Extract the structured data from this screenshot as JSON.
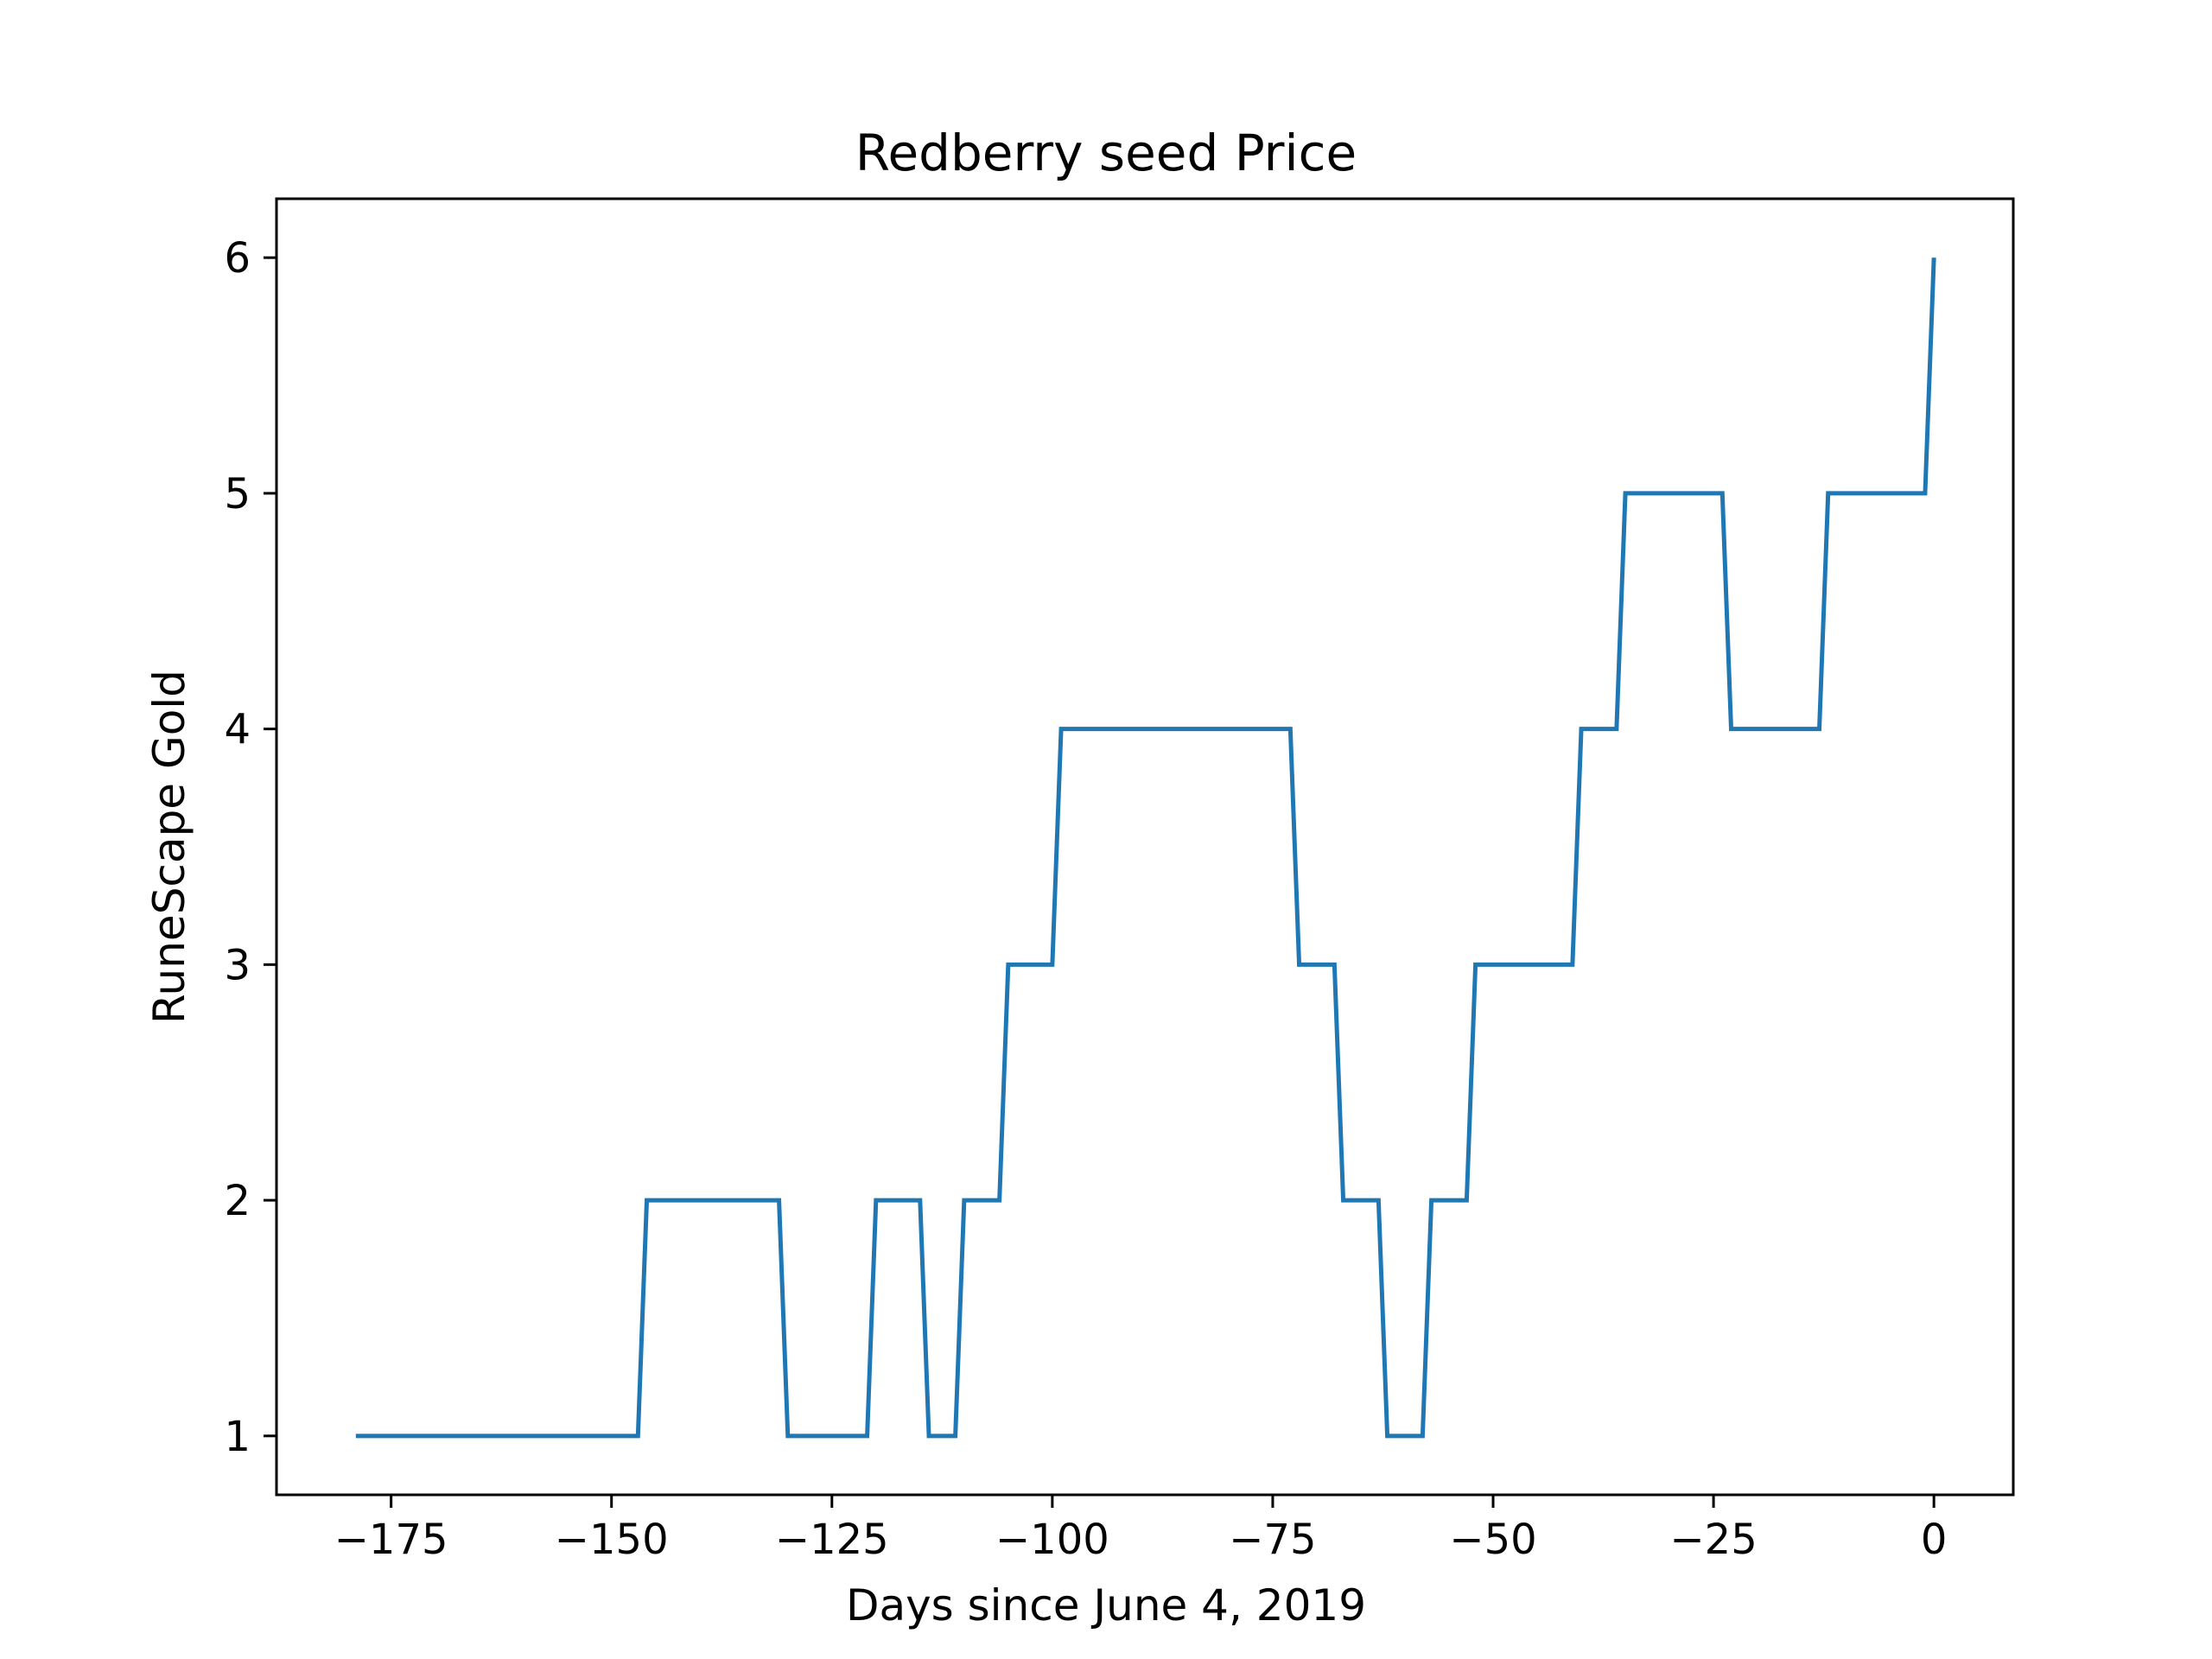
{
  "chart_data": {
    "type": "line",
    "title": "Redberry seed Price",
    "xlabel": "Days since June 4, 2019",
    "ylabel": "RuneScape Gold",
    "xlim": [
      -188,
      9
    ],
    "ylim": [
      0.75,
      6.25
    ],
    "xticks": [
      -175,
      -150,
      -125,
      -100,
      -75,
      -50,
      -25,
      0
    ],
    "xtick_labels": [
      "−175",
      "−150",
      "−125",
      "−100",
      "−75",
      "−50",
      "−25",
      "0"
    ],
    "yticks": [
      1,
      2,
      3,
      4,
      5,
      6
    ],
    "ytick_labels": [
      "1",
      "2",
      "3",
      "4",
      "5",
      "6"
    ],
    "grid": false,
    "series": [
      {
        "color": "#1f77b4",
        "x": [
          -179,
          -147,
          -146,
          -131,
          -130,
          -121,
          -120,
          -115,
          -114,
          -111,
          -110,
          -106,
          -105,
          -100,
          -99,
          -73,
          -72,
          -68,
          -67,
          -63,
          -62,
          -58,
          -57,
          -53,
          -52,
          -41,
          -40,
          -36,
          -35,
          -24,
          -23,
          -13,
          -12,
          -1,
          0
        ],
        "y": [
          1,
          1,
          2,
          2,
          1,
          1,
          2,
          2,
          1,
          1,
          2,
          2,
          3,
          3,
          4,
          4,
          3,
          3,
          2,
          2,
          1,
          1,
          2,
          2,
          3,
          3,
          4,
          4,
          5,
          5,
          4,
          4,
          5,
          5,
          6
        ]
      }
    ]
  }
}
